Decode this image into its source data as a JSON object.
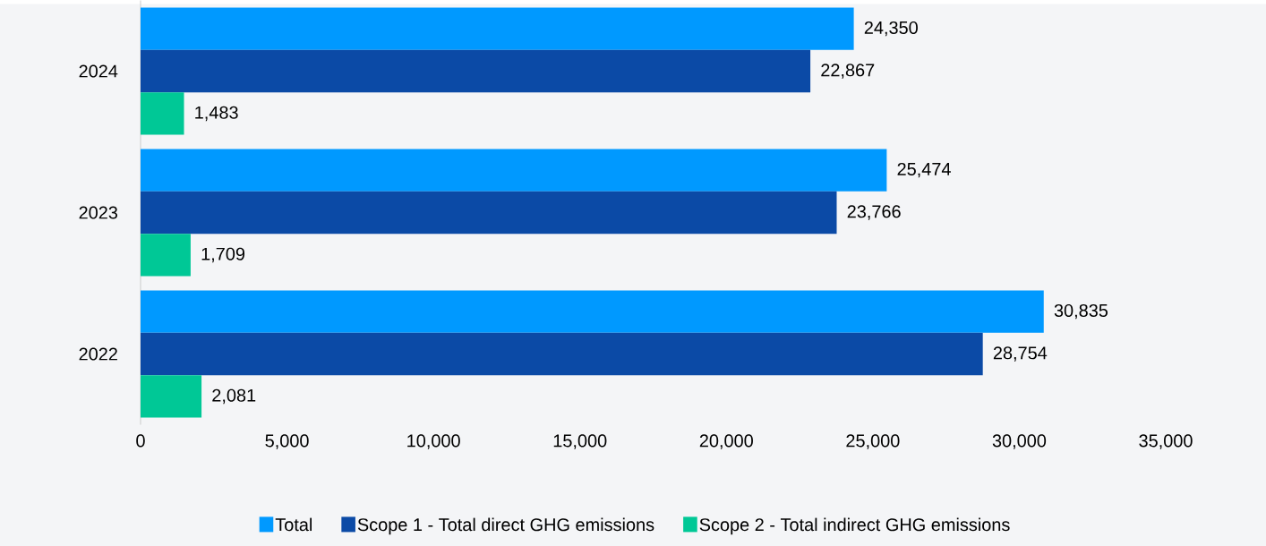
{
  "chart_data": {
    "type": "bar",
    "orientation": "horizontal",
    "categories": [
      "2024",
      "2023",
      "2022"
    ],
    "series": [
      {
        "name": "Total",
        "color": "#0099ff",
        "values": [
          24350,
          25474,
          30835
        ],
        "value_labels": [
          "24,350",
          "25,474",
          "30,835"
        ]
      },
      {
        "name": "Scope 1 - Total direct GHG emissions",
        "color": "#0b4aa6",
        "values": [
          22867,
          23766,
          28754
        ],
        "value_labels": [
          "22,867",
          "23,766",
          "28,754"
        ]
      },
      {
        "name": "Scope 2 - Total indirect GHG emissions",
        "color": "#00c896",
        "values": [
          1483,
          1709,
          2081
        ],
        "value_labels": [
          "1,483",
          "1,709",
          "2,081"
        ]
      }
    ],
    "xlim": [
      0,
      35000
    ],
    "xticks": [
      0,
      {
        "value": 5000,
        "label": "5,000"
      },
      {
        "value": 10000,
        "label": "10,000"
      },
      {
        "value": 15000,
        "label": "15,000"
      },
      {
        "value": 20000,
        "label": "20,000"
      },
      {
        "value": 25000,
        "label": "25,000"
      },
      {
        "value": 30000,
        "label": "30,000"
      },
      {
        "value": 35000,
        "label": "35,000"
      }
    ],
    "legend": "bottom"
  }
}
